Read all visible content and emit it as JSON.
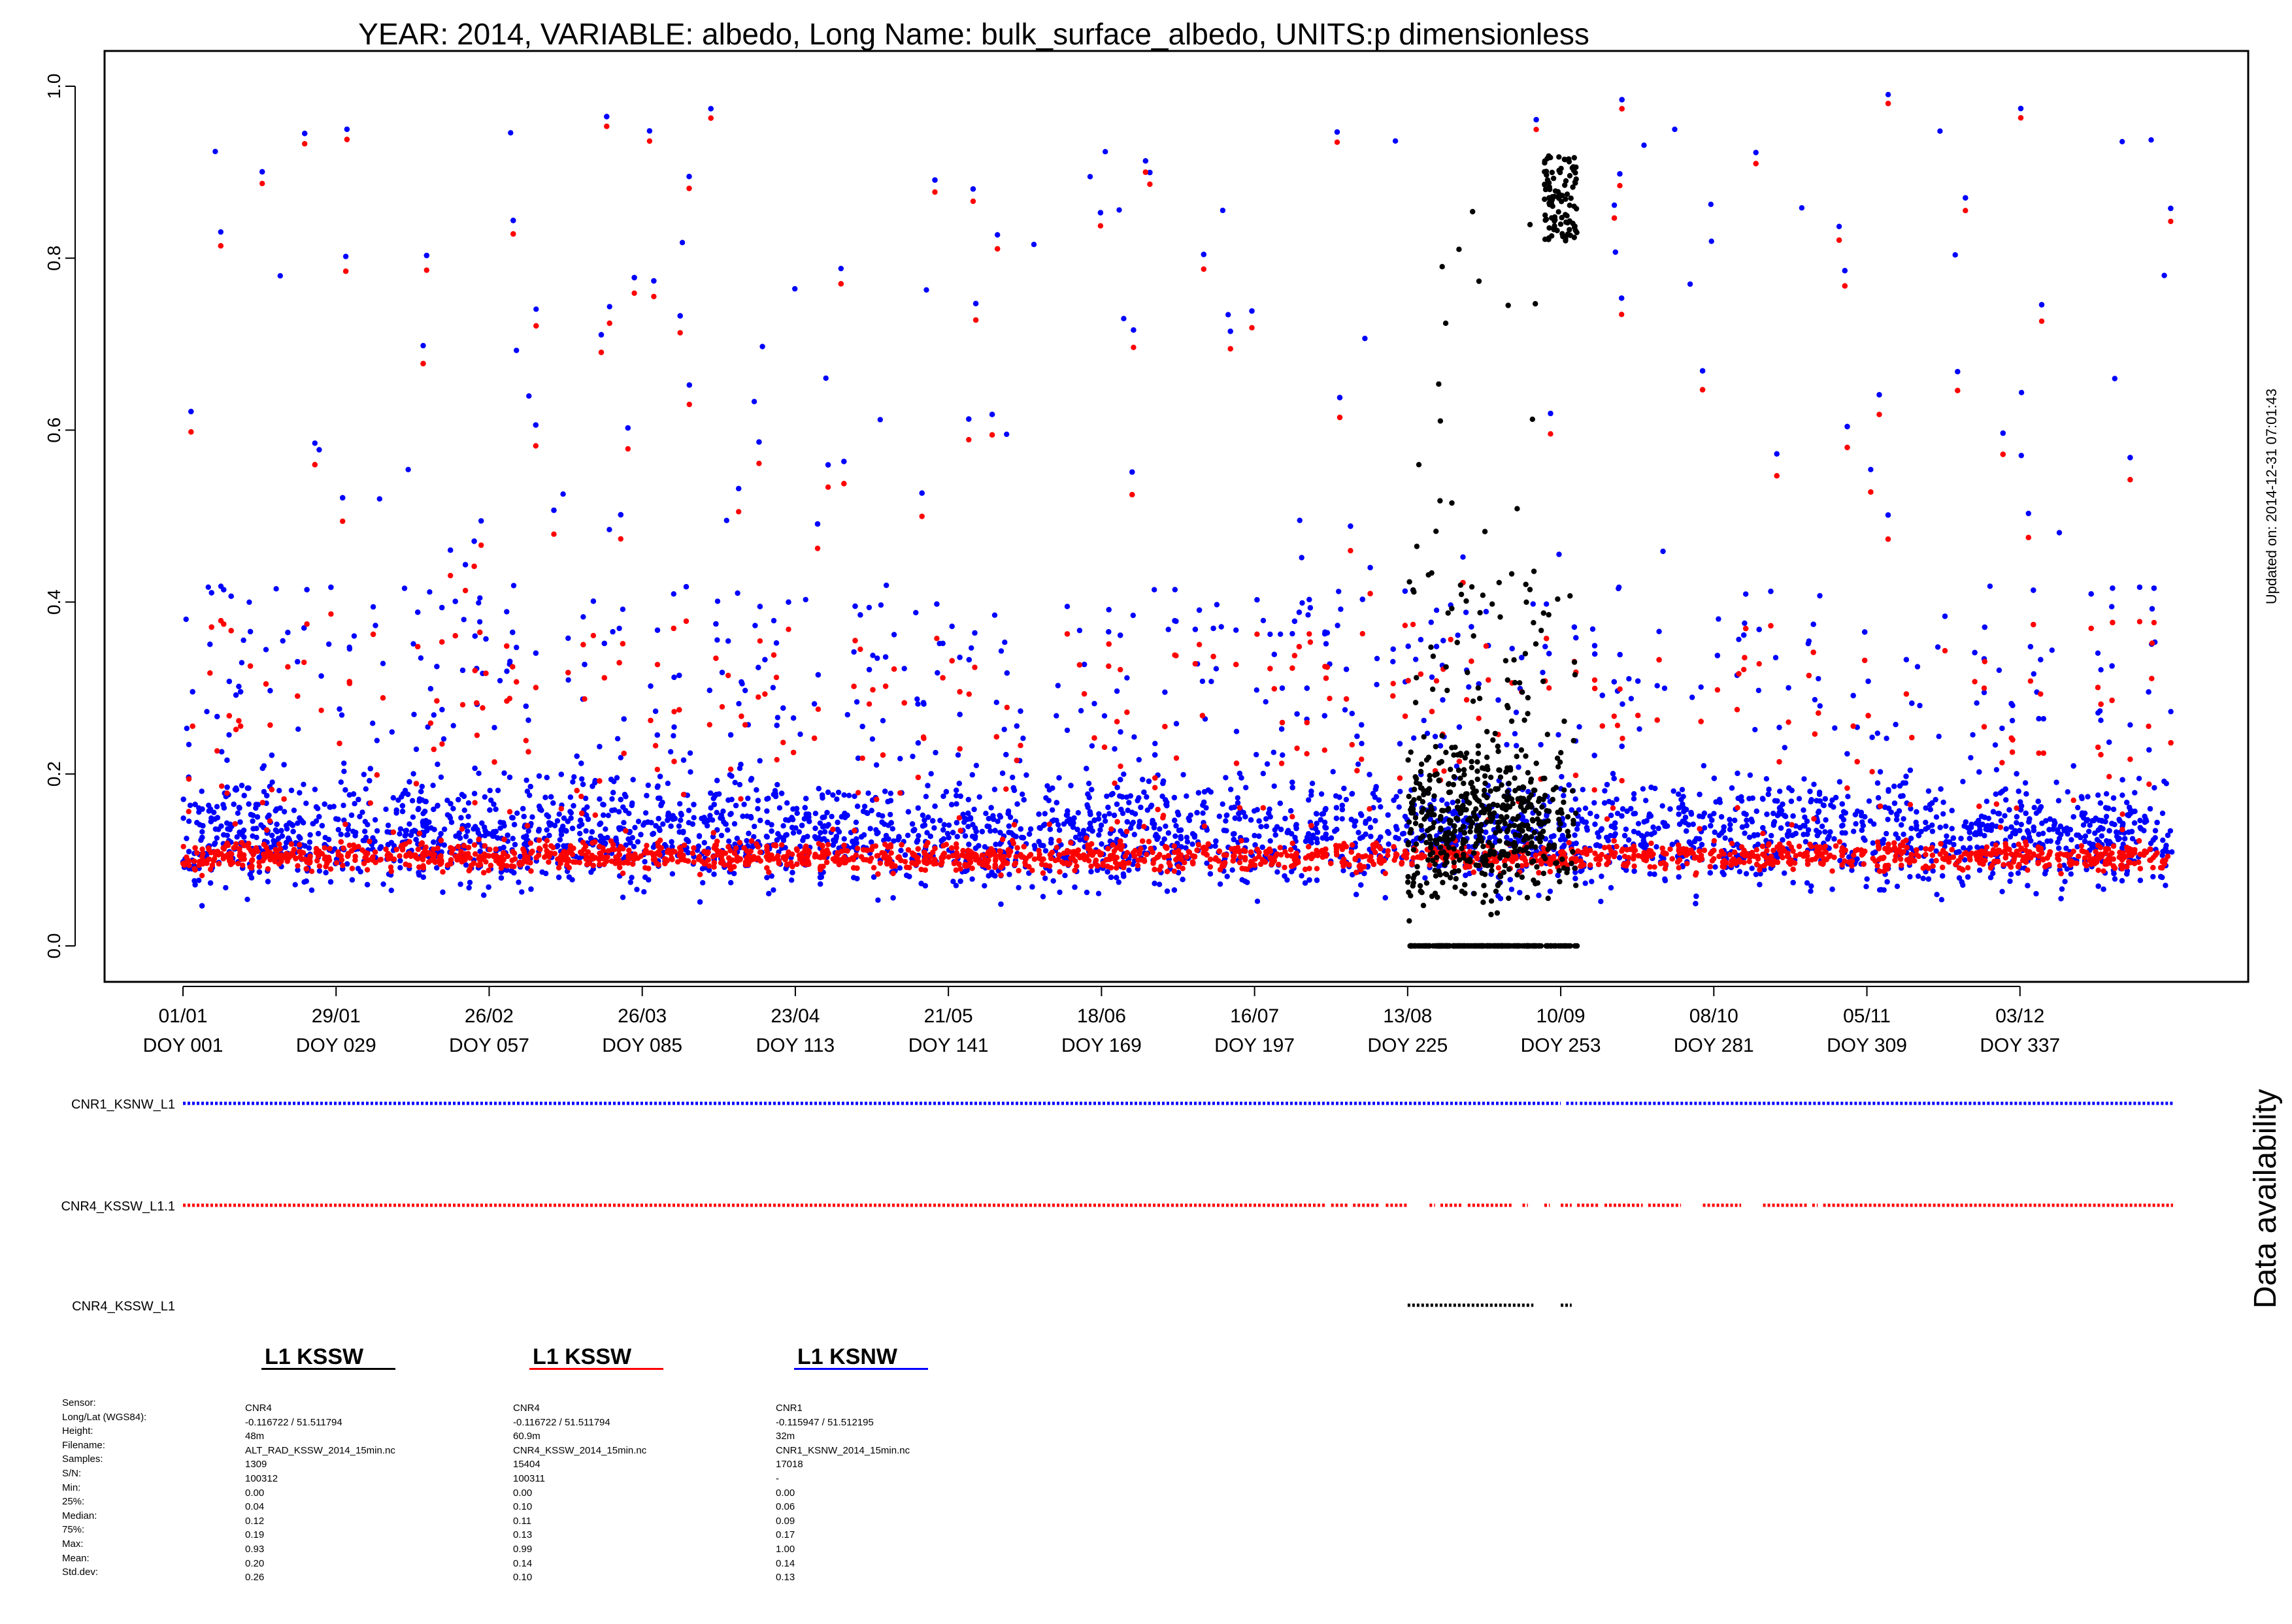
{
  "chart_data": {
    "type": "scatter",
    "title": "YEAR: 2014, VARIABLE: albedo, Long Name: bulk_surface_albedo, UNITS:p dimensionless",
    "xlabel": "",
    "ylabel": "",
    "xlim": [
      1,
      366
    ],
    "ylim": [
      0,
      1
    ],
    "y_ticks": [
      "0.0",
      "0.2",
      "0.4",
      "0.6",
      "0.8",
      "1.0"
    ],
    "x_ticks": [
      {
        "date": "01/01",
        "doy": "DOY 001",
        "day": 1
      },
      {
        "date": "29/01",
        "doy": "DOY 029",
        "day": 29
      },
      {
        "date": "26/02",
        "doy": "DOY 057",
        "day": 57
      },
      {
        "date": "26/03",
        "doy": "DOY 085",
        "day": 85
      },
      {
        "date": "23/04",
        "doy": "DOY 113",
        "day": 113
      },
      {
        "date": "21/05",
        "doy": "DOY 141",
        "day": 141
      },
      {
        "date": "18/06",
        "doy": "DOY 169",
        "day": 169
      },
      {
        "date": "16/07",
        "doy": "DOY 197",
        "day": 197
      },
      {
        "date": "13/08",
        "doy": "DOY 225",
        "day": 225
      },
      {
        "date": "10/09",
        "doy": "DOY 253",
        "day": 253
      },
      {
        "date": "08/10",
        "doy": "DOY 281",
        "day": 281
      },
      {
        "date": "05/11",
        "doy": "DOY 309",
        "day": 309
      },
      {
        "date": "03/12",
        "doy": "DOY 337",
        "day": 337
      }
    ],
    "grid": false,
    "series": [
      {
        "name": "CNR1_KSNW_L1",
        "color": "#0000ff",
        "median": 0.09,
        "p25": 0.06,
        "p75": 0.17,
        "min": 0.0,
        "max": 1.0,
        "days": [
          1,
          365
        ]
      },
      {
        "name": "CNR4_KSSW_L1.1",
        "color": "#ff0000",
        "median": 0.11,
        "p25": 0.1,
        "p75": 0.13,
        "min": 0.0,
        "max": 0.99,
        "days": [
          1,
          365
        ]
      },
      {
        "name": "CNR4_KSSW_L1",
        "color": "#000000",
        "median": 0.12,
        "p25": 0.04,
        "p75": 0.19,
        "min": 0.0,
        "max": 0.93,
        "days": [
          225,
          256
        ]
      }
    ],
    "availability": {
      "label": "Data availability",
      "rows": [
        {
          "name": "CNR1_KSNW_L1",
          "color": "#0000ff",
          "ranges": [
            [
              1,
              253
            ],
            [
              254,
              256
            ],
            [
              256.5,
              365
            ]
          ]
        },
        {
          "name": "CNR4_KSSW_L1.1",
          "color": "#ff0000",
          "ranges": [
            [
              1,
              210
            ],
            [
              211,
              214
            ],
            [
              215,
              220
            ],
            [
              221,
              225
            ],
            [
              229,
              230
            ],
            [
              231,
              235
            ],
            [
              236,
              244
            ],
            [
              246,
              247
            ],
            [
              250,
              251
            ],
            [
              253,
              255
            ],
            [
              256,
              260
            ],
            [
              261,
              268
            ],
            [
              269,
              275
            ],
            [
              279,
              286
            ],
            [
              290,
              298
            ],
            [
              299,
              300
            ],
            [
              301,
              365
            ]
          ]
        },
        {
          "name": "CNR4_KSSW_L1",
          "color": "#000000",
          "ranges": [
            [
              225,
              248
            ],
            [
              253,
              255
            ]
          ]
        }
      ]
    },
    "updated_note": "Updated on: 2014-12-31 07:01:43"
  },
  "legend": [
    {
      "title": "L1 KSSW",
      "color": "#000000"
    },
    {
      "title": "L1 KSSW",
      "color": "#ff0000"
    },
    {
      "title": "L1 KSNW",
      "color": "#0000ff"
    }
  ],
  "stats": {
    "labels": [
      "Sensor:",
      "Long/Lat (WGS84):",
      "Height:",
      "Filename:",
      "Samples:",
      "S/N:",
      "Min:",
      "25%:",
      "Median:",
      "75%:",
      "Max:",
      "Mean:",
      "Std.dev:"
    ],
    "columns": [
      [
        "CNR4",
        "-0.116722 / 51.511794",
        "48m",
        "ALT_RAD_KSSW_2014_15min.nc",
        "1309",
        "100312",
        "0.00",
        "0.04",
        "0.12",
        "0.19",
        "0.93",
        "0.20",
        "0.26"
      ],
      [
        "CNR4",
        "-0.116722 / 51.511794",
        "60.9m",
        "CNR4_KSSW_2014_15min.nc",
        "15404",
        "100311",
        "0.00",
        "0.10",
        "0.11",
        "0.13",
        "0.99",
        "0.14",
        "0.10"
      ],
      [
        "CNR1",
        "-0.115947 / 51.512195",
        "32m",
        "CNR1_KSNW_2014_15min.nc",
        "17018",
        "-",
        "0.00",
        "0.06",
        "0.09",
        "0.17",
        "1.00",
        "0.14",
        "0.13"
      ]
    ]
  }
}
